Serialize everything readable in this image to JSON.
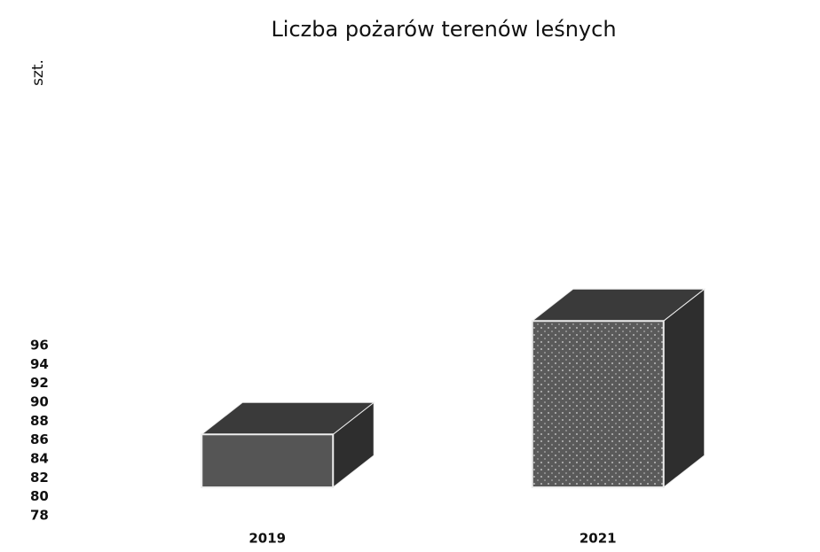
{
  "chart_data": {
    "type": "bar3d",
    "title": "Liczba pożarów terenów leśnych",
    "y_label": "szt.",
    "categories": [
      "2019",
      "2021"
    ],
    "values": [
      86.6,
      98.6
    ],
    "color": "#555555",
    "ylim": [
      78,
      100
    ],
    "yticks": [
      78,
      80,
      82,
      84,
      86,
      88,
      90,
      92,
      94,
      96
    ],
    "grid": false
  }
}
